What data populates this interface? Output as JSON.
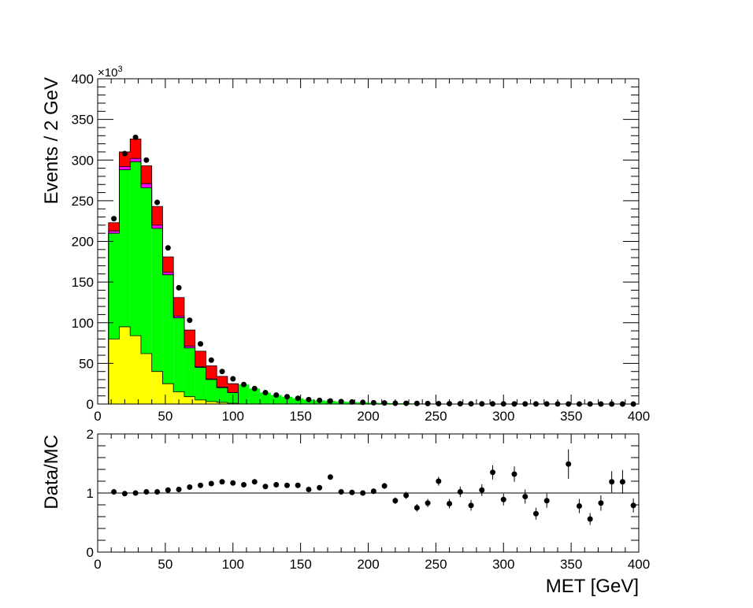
{
  "chart_data": [
    {
      "type": "bar",
      "panel": "main",
      "style": "stacked step histogram with data points",
      "xlabel": "",
      "ylabel": "Events / 2 GeV",
      "y_multiplier_label": "×10",
      "y_multiplier_exponent": "3",
      "x_range": [
        0,
        400
      ],
      "y_range": [
        0,
        400
      ],
      "y_unit": "thousands of events",
      "bin_width": 8,
      "x_ticks": [
        "0",
        "50",
        "100",
        "150",
        "200",
        "250",
        "300",
        "350",
        "400"
      ],
      "y_ticks": [
        "0",
        "50",
        "100",
        "150",
        "200",
        "250",
        "300",
        "350",
        "400"
      ],
      "mc_range": [
        8,
        104
      ],
      "colors": {
        "yellow_component": "#ffff00",
        "green_component": "#00ff00",
        "magenta_component": "#ff00ff",
        "red_component": "#ff0000",
        "data_points": "#000000"
      },
      "stack_boundaries": [
        {
          "name": "yellow top",
          "values": [
            80,
            95,
            84,
            62,
            40,
            25,
            15,
            9,
            5,
            3,
            2,
            1
          ]
        },
        {
          "name": "green top",
          "values": [
            210,
            288,
            298,
            266,
            216,
            159,
            106,
            69,
            45,
            30,
            20,
            14
          ]
        },
        {
          "name": "magenta top",
          "values": [
            213,
            292,
            302,
            271,
            220,
            162,
            108,
            71,
            46,
            31,
            21,
            14
          ]
        },
        {
          "name": "total stack",
          "values": [
            223,
            310,
            326,
            293,
            243,
            181,
            131,
            91,
            65,
            47,
            34,
            25
          ]
        }
      ],
      "data": {
        "x": [
          12,
          20,
          28,
          36,
          44,
          52,
          60,
          68,
          76,
          84,
          92,
          100,
          108,
          116,
          124,
          132,
          140,
          148,
          156,
          164,
          172,
          180,
          188,
          196,
          204,
          212,
          220,
          228,
          236,
          244,
          252,
          260,
          268,
          276,
          284,
          292,
          300,
          308,
          316,
          324,
          332,
          340,
          348,
          356,
          364,
          372,
          380,
          388,
          396
        ],
        "y": [
          228,
          308,
          328,
          300,
          248,
          192,
          143,
          103,
          74,
          54,
          40,
          31,
          24,
          19,
          14,
          11,
          9,
          7,
          5.5,
          4.5,
          3.8,
          3,
          2.5,
          2,
          1.6,
          1.3,
          1,
          0.9,
          0.7,
          0.6,
          0.5,
          0.4,
          0.35,
          0.3,
          0.25,
          0.2,
          0.18,
          0.15,
          0.12,
          0.1,
          0.08,
          0.07,
          0.06,
          0.05,
          0.04,
          0.035,
          0.03,
          0.025,
          0.02
        ]
      }
    },
    {
      "type": "scatter",
      "panel": "ratio",
      "xlabel": "MET [GeV]",
      "ylabel": "Data/MC",
      "x_range": [
        0,
        400
      ],
      "y_range": [
        0,
        2
      ],
      "reference_line": 1,
      "x_ticks": [
        "0",
        "50",
        "100",
        "150",
        "200",
        "250",
        "300",
        "350",
        "400"
      ],
      "y_ticks": [
        "0",
        "1",
        "2"
      ],
      "x": [
        12,
        20,
        28,
        36,
        44,
        52,
        60,
        68,
        76,
        84,
        92,
        100,
        108,
        116,
        124,
        132,
        140,
        148,
        156,
        164,
        172,
        180,
        188,
        196,
        204,
        212,
        220,
        228,
        236,
        244,
        252,
        260,
        268,
        276,
        284,
        292,
        300,
        308,
        316,
        324,
        332,
        340,
        348,
        356,
        364,
        372,
        380,
        388,
        396
      ],
      "y": [
        1.02,
        0.99,
        1.0,
        1.02,
        1.02,
        1.05,
        1.06,
        1.1,
        1.13,
        1.16,
        1.19,
        1.17,
        1.14,
        1.19,
        1.11,
        1.14,
        1.13,
        1.13,
        1.06,
        1.09,
        1.27,
        1.02,
        1.01,
        1.0,
        1.03,
        1.12,
        0.87,
        0.96,
        0.75,
        0.83,
        1.2,
        0.82,
        1.02,
        0.79,
        1.05,
        1.35,
        0.89,
        1.32,
        0.94,
        0.65,
        0.87,
        null,
        1.49,
        0.78,
        0.56,
        0.83,
        1.19,
        1.19,
        0.79
      ],
      "y_err": [
        0.005,
        0.005,
        0.005,
        0.005,
        0.005,
        0.005,
        0.005,
        0.006,
        0.007,
        0.008,
        0.009,
        0.01,
        0.012,
        0.014,
        0.016,
        0.018,
        0.02,
        0.022,
        0.025,
        0.028,
        0.03,
        0.034,
        0.038,
        0.04,
        0.045,
        0.05,
        0.055,
        0.06,
        0.065,
        0.07,
        0.075,
        0.08,
        0.09,
        0.09,
        0.1,
        0.12,
        0.1,
        0.13,
        0.12,
        0.1,
        0.12,
        0,
        0.25,
        0.12,
        0.1,
        0.13,
        0.18,
        0.2,
        0.12
      ]
    }
  ]
}
